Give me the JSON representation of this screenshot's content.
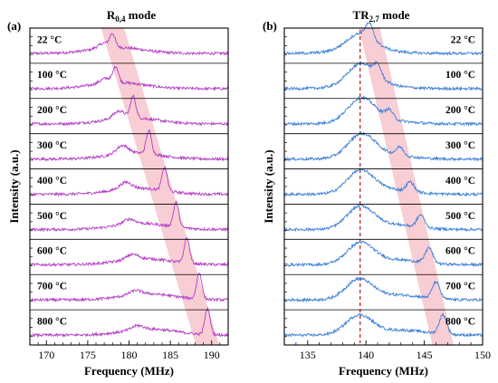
{
  "chart_data": [
    {
      "type": "line",
      "panel_label": "(a)",
      "title_main": "R",
      "title_sub": "0,4",
      "title_suffix": " mode",
      "xlabel": "Frequency (MHz)",
      "ylabel": "Intensity (a.u.)",
      "xlim": [
        168,
        192
      ],
      "xticks": [
        170,
        175,
        180,
        185,
        190
      ],
      "xtick_labels": [
        "170",
        "175",
        "180",
        "185",
        "190"
      ],
      "color": "#b43cc6",
      "trend_band_color": "#f6bcc6",
      "grid": false,
      "series": [
        {
          "label": "22 °C",
          "peak_mhz": 178.0,
          "shoulder_mhz": 177.0,
          "peak_height": 0.45,
          "shoulder_height": 0.3
        },
        {
          "label": "100 °C",
          "peak_mhz": 178.4,
          "shoulder_mhz": 177.2,
          "peak_height": 0.55,
          "shoulder_height": 0.3
        },
        {
          "label": "200 °C",
          "peak_mhz": 180.5,
          "shoulder_mhz": 178.8,
          "peak_height": 0.78,
          "shoulder_height": 0.45
        },
        {
          "label": "300 °C",
          "peak_mhz": 182.4,
          "shoulder_mhz": 179.2,
          "peak_height": 0.85,
          "shoulder_height": 0.5
        },
        {
          "label": "400 °C",
          "peak_mhz": 184.3,
          "shoulder_mhz": 179.6,
          "peak_height": 0.85,
          "shoulder_height": 0.4
        },
        {
          "label": "500 °C",
          "peak_mhz": 185.7,
          "shoulder_mhz": 180.0,
          "peak_height": 0.9,
          "shoulder_height": 0.3
        },
        {
          "label": "600 °C",
          "peak_mhz": 187.0,
          "shoulder_mhz": 180.4,
          "peak_height": 0.92,
          "shoulder_height": 0.3
        },
        {
          "label": "700 °C",
          "peak_mhz": 188.5,
          "shoulder_mhz": 180.8,
          "peak_height": 0.95,
          "shoulder_height": 0.25
        },
        {
          "label": "800 °C",
          "peak_mhz": 189.5,
          "shoulder_mhz": 181.0,
          "peak_height": 0.95,
          "shoulder_height": 0.25
        }
      ]
    },
    {
      "type": "line",
      "panel_label": "(b)",
      "title_main": "TR",
      "title_sub": "2,7",
      "title_suffix": " mode",
      "xlabel": "Frequency (MHz)",
      "ylabel": "Intensity (a.u.)",
      "xlim": [
        133,
        150
      ],
      "xticks": [
        135,
        140,
        145,
        150
      ],
      "xtick_labels": [
        "135",
        "140",
        "145",
        "150"
      ],
      "color": "#3a7fd6",
      "trend_band_color": "#f6bcc6",
      "reference_line_mhz": 139.5,
      "reference_line_color": "#c0262b",
      "grid": false,
      "series": [
        {
          "label": "22 °C",
          "peak_mhz": 139.5,
          "shoulder_mhz": 140.3,
          "peak_height": 0.55,
          "shoulder_height": 0.5
        },
        {
          "label": "100 °C",
          "peak_mhz": 139.6,
          "shoulder_mhz": 141.0,
          "peak_height": 0.75,
          "shoulder_height": 0.4
        },
        {
          "label": "200 °C",
          "peak_mhz": 139.6,
          "shoulder_mhz": 142.0,
          "peak_height": 0.8,
          "shoulder_height": 0.3
        },
        {
          "label": "300 °C",
          "peak_mhz": 139.6,
          "shoulder_mhz": 142.9,
          "peak_height": 0.8,
          "shoulder_height": 0.3
        },
        {
          "label": "400 °C",
          "peak_mhz": 139.5,
          "shoulder_mhz": 143.8,
          "peak_height": 0.78,
          "shoulder_height": 0.35
        },
        {
          "label": "500 °C",
          "peak_mhz": 139.5,
          "shoulder_mhz": 144.7,
          "peak_height": 0.78,
          "shoulder_height": 0.45
        },
        {
          "label": "600 °C",
          "peak_mhz": 139.5,
          "shoulder_mhz": 145.4,
          "peak_height": 0.75,
          "shoulder_height": 0.55
        },
        {
          "label": "700 °C",
          "peak_mhz": 139.4,
          "shoulder_mhz": 146.0,
          "peak_height": 0.72,
          "shoulder_height": 0.6
        },
        {
          "label": "800 °C",
          "peak_mhz": 139.4,
          "shoulder_mhz": 146.6,
          "peak_height": 0.7,
          "shoulder_height": 0.7
        }
      ]
    }
  ]
}
